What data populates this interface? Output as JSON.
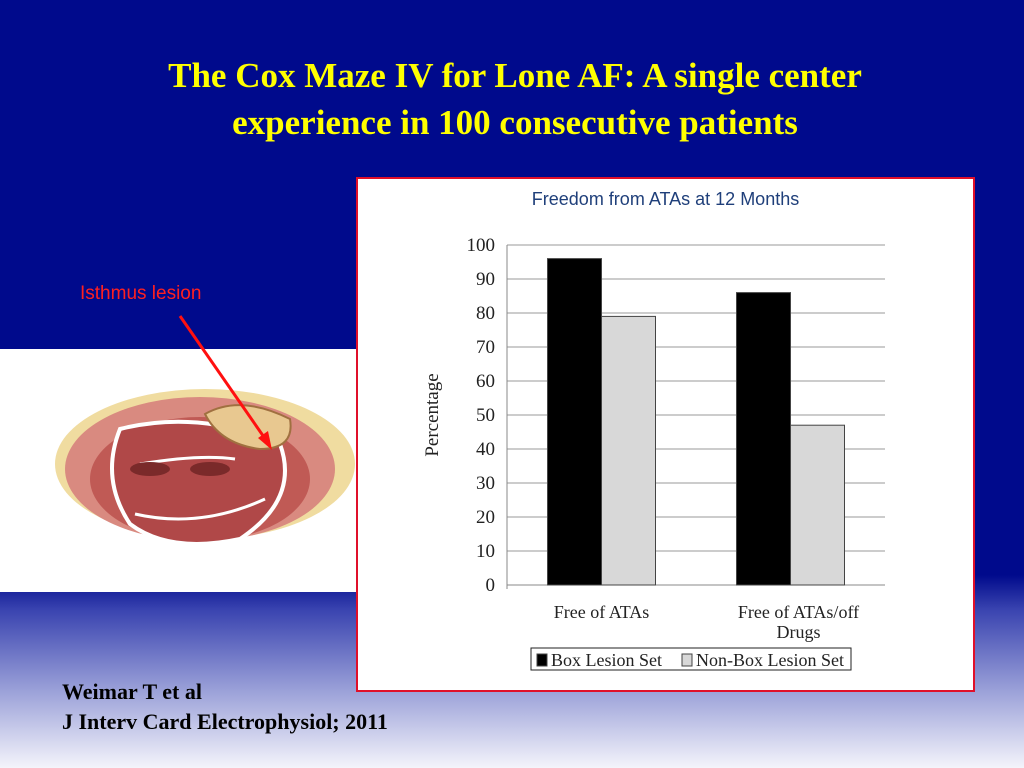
{
  "slide": {
    "title_line1": "The Cox Maze IV for Lone AF: A single center",
    "title_line2": "experience in 100 consecutive patients",
    "annotation": "Isthmus lesion",
    "citation_line1": "Weimar T et al",
    "citation_line2": "J Interv Card Electrophysiol; 2011",
    "colors": {
      "background": "#000a8c",
      "title": "#ffff00",
      "annotation": "#ff2020",
      "chart_border": "#e0102a"
    }
  },
  "chart_data": {
    "type": "bar",
    "title": "Freedom from ATAs at 12 Months",
    "categories": [
      "Free of ATAs",
      "Free of ATAs/off Drugs"
    ],
    "series": [
      {
        "name": "Box Lesion Set",
        "values": [
          96,
          86
        ],
        "color": "#000000"
      },
      {
        "name": "Non-Box Lesion Set",
        "values": [
          79,
          47
        ],
        "color": "#d8d8d8"
      }
    ],
    "xlabel": "",
    "ylabel": "Percentage",
    "ylim": [
      0,
      100
    ],
    "yticks": [
      0,
      10,
      20,
      30,
      40,
      50,
      60,
      70,
      80,
      90,
      100
    ],
    "grid": true,
    "legend": "bottom"
  }
}
